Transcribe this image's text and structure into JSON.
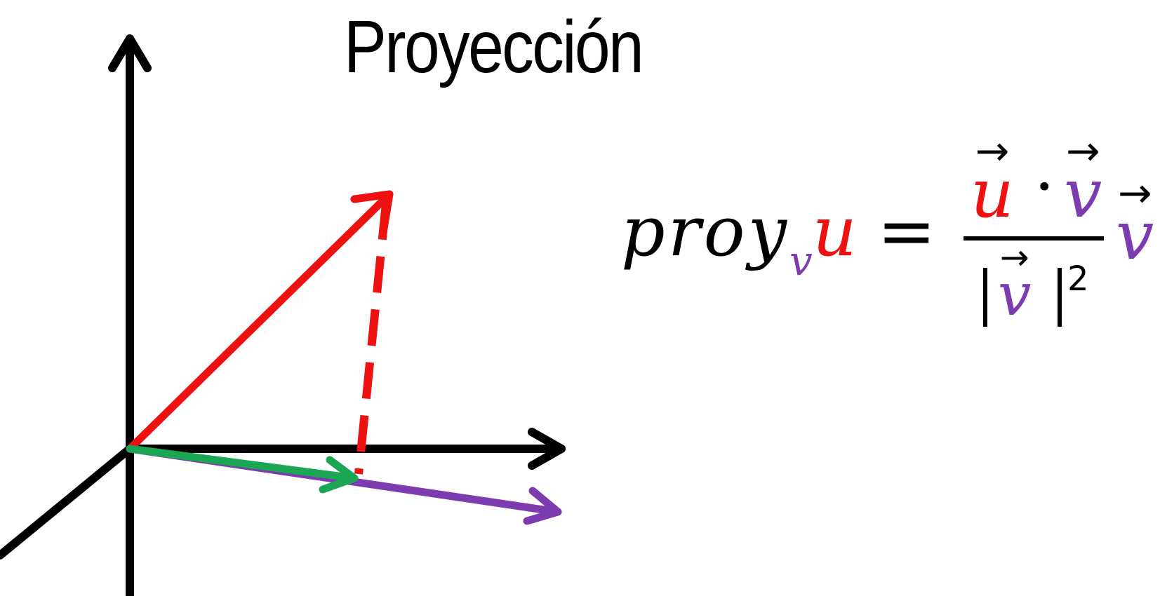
{
  "title": "Proyección",
  "colors": {
    "axes": "#000000",
    "vector_u": "#ee1111",
    "projection_line": "#ee1111",
    "vector_v": "#7d3bb0",
    "projection_vector": "#1aa653"
  },
  "formula": {
    "lhs_name": "proy",
    "lhs_subscript": "v",
    "lhs_vector": "u",
    "equals": "=",
    "numerator_u": "u",
    "numerator_dot": "·",
    "numerator_v": "v",
    "denominator_v": "v",
    "denominator_exponent": "2",
    "rhs_v": "v",
    "vector_arrow": "→"
  }
}
